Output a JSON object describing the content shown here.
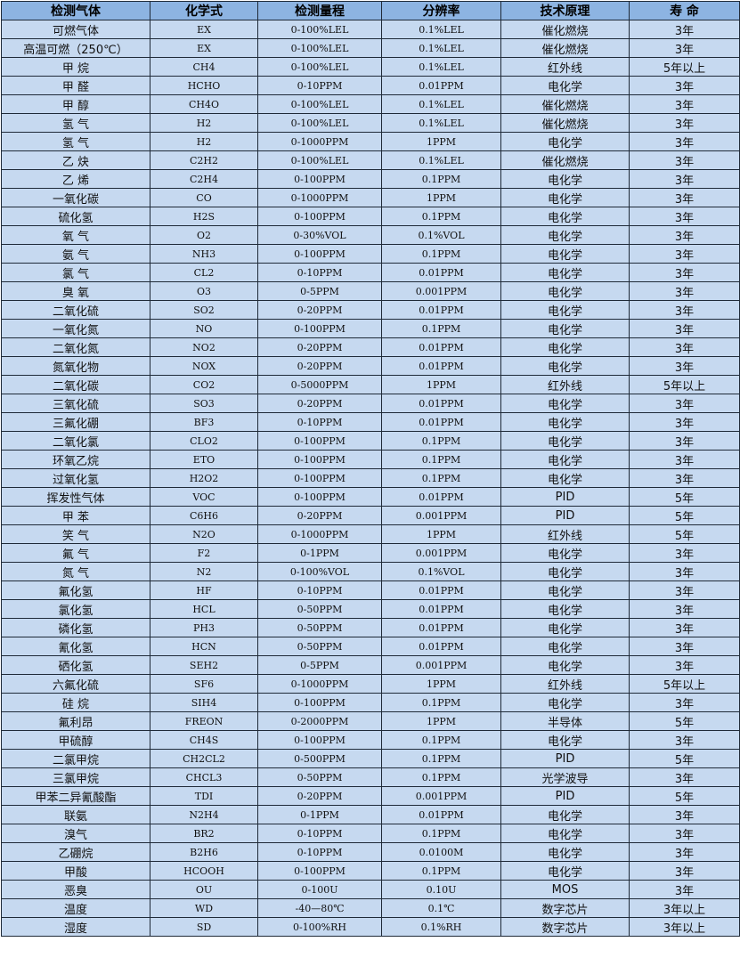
{
  "table": {
    "headers": [
      "检测气体",
      "化学式",
      "检测量程",
      "分辨率",
      "技术原理",
      "寿 命"
    ],
    "rows": [
      [
        "可燃气体",
        "EX",
        "0-100%LEL",
        "0.1%LEL",
        "催化燃烧",
        "3年"
      ],
      [
        "高温可燃（250℃）",
        "EX",
        "0-100%LEL",
        "0.1%LEL",
        "催化燃烧",
        "3年"
      ],
      [
        "甲 烷",
        "CH4",
        "0-100%LEL",
        "0.1%LEL",
        "红外线",
        "5年以上"
      ],
      [
        "甲 醛",
        "HCHO",
        "0-10PPM",
        "0.01PPM",
        "电化学",
        "3年"
      ],
      [
        "甲 醇",
        "CH4O",
        "0-100%LEL",
        "0.1%LEL",
        "催化燃烧",
        "3年"
      ],
      [
        "氢 气",
        "H2",
        "0-100%LEL",
        "0.1%LEL",
        "催化燃烧",
        "3年"
      ],
      [
        "氢 气",
        "H2",
        "0-1000PPM",
        "1PPM",
        "电化学",
        "3年"
      ],
      [
        "乙 炔",
        "C2H2",
        "0-100%LEL",
        "0.1%LEL",
        "催化燃烧",
        "3年"
      ],
      [
        "乙 烯",
        "C2H4",
        "0-100PPM",
        "0.1PPM",
        "电化学",
        "3年"
      ],
      [
        "一氧化碳",
        "CO",
        "0-1000PPM",
        "1PPM",
        "电化学",
        "3年"
      ],
      [
        "硫化氢",
        "H2S",
        "0-100PPM",
        "0.1PPM",
        "电化学",
        "3年"
      ],
      [
        "氧 气",
        "O2",
        "0-30%VOL",
        "0.1%VOL",
        "电化学",
        "3年"
      ],
      [
        "氨 气",
        "NH3",
        "0-100PPM",
        "0.1PPM",
        "电化学",
        "3年"
      ],
      [
        "氯 气",
        "CL2",
        "0-10PPM",
        "0.01PPM",
        "电化学",
        "3年"
      ],
      [
        "臭 氧",
        "O3",
        "0-5PPM",
        "0.001PPM",
        "电化学",
        "3年"
      ],
      [
        "二氧化硫",
        "SO2",
        "0-20PPM",
        "0.01PPM",
        "电化学",
        "3年"
      ],
      [
        "一氧化氮",
        "NO",
        "0-100PPM",
        "0.1PPM",
        "电化学",
        "3年"
      ],
      [
        "二氧化氮",
        "NO2",
        "0-20PPM",
        "0.01PPM",
        "电化学",
        "3年"
      ],
      [
        "氮氧化物",
        "NOX",
        "0-20PPM",
        "0.01PPM",
        "电化学",
        "3年"
      ],
      [
        "二氧化碳",
        "CO2",
        "0-5000PPM",
        "1PPM",
        "红外线",
        "5年以上"
      ],
      [
        "三氧化硫",
        "SO3",
        "0-20PPM",
        "0.01PPM",
        "电化学",
        "3年"
      ],
      [
        "三氟化硼",
        "BF3",
        "0-10PPM",
        "0.01PPM",
        "电化学",
        "3年"
      ],
      [
        "二氧化氯",
        "CLO2",
        "0-100PPM",
        "0.1PPM",
        "电化学",
        "3年"
      ],
      [
        "环氧乙烷",
        "ETO",
        "0-100PPM",
        "0.1PPM",
        "电化学",
        "3年"
      ],
      [
        "过氧化氢",
        "H2O2",
        "0-100PPM",
        "0.1PPM",
        "电化学",
        "3年"
      ],
      [
        "挥发性气体",
        "VOC",
        "0-100PPM",
        "0.01PPM",
        "PID",
        "5年"
      ],
      [
        "甲 苯",
        "C6H6",
        "0-20PPM",
        "0.001PPM",
        "PID",
        "5年"
      ],
      [
        "笑 气",
        "N2O",
        "0-1000PPM",
        "1PPM",
        "红外线",
        "5年"
      ],
      [
        "氟 气",
        "F2",
        "0-1PPM",
        "0.001PPM",
        "电化学",
        "3年"
      ],
      [
        "氮 气",
        "N2",
        "0-100%VOL",
        "0.1%VOL",
        "电化学",
        "3年"
      ],
      [
        "氟化氢",
        "HF",
        "0-10PPM",
        "0.01PPM",
        "电化学",
        "3年"
      ],
      [
        "氯化氢",
        "HCL",
        "0-50PPM",
        "0.01PPM",
        "电化学",
        "3年"
      ],
      [
        "磷化氢",
        "PH3",
        "0-50PPM",
        "0.01PPM",
        "电化学",
        "3年"
      ],
      [
        "氰化氢",
        "HCN",
        "0-50PPM",
        "0.01PPM",
        "电化学",
        "3年"
      ],
      [
        "硒化氢",
        "SEH2",
        "0-5PPM",
        "0.001PPM",
        "电化学",
        "3年"
      ],
      [
        "六氟化硫",
        "SF6",
        "0-1000PPM",
        "1PPM",
        "红外线",
        "5年以上"
      ],
      [
        "硅 烷",
        "SIH4",
        "0-100PPM",
        "0.1PPM",
        "电化学",
        "3年"
      ],
      [
        "氟利昂",
        "FREON",
        "0-2000PPM",
        "1PPM",
        "半导体",
        "5年"
      ],
      [
        "甲硫醇",
        "CH4S",
        "0-100PPM",
        "0.1PPM",
        "电化学",
        "3年"
      ],
      [
        "二氯甲烷",
        "CH2CL2",
        "0-500PPM",
        "0.1PPM",
        "PID",
        "5年"
      ],
      [
        "三氯甲烷",
        "CHCL3",
        "0-50PPM",
        "0.1PPM",
        "光学波导",
        "3年"
      ],
      [
        "甲苯二异氰酸酯",
        "TDI",
        "0-20PPM",
        "0.001PPM",
        "PID",
        "5年"
      ],
      [
        "联氨",
        "N2H4",
        "0-1PPM",
        "0.01PPM",
        "电化学",
        "3年"
      ],
      [
        "溴气",
        "BR2",
        "0-10PPM",
        "0.1PPM",
        "电化学",
        "3年"
      ],
      [
        "乙硼烷",
        "B2H6",
        "0-10PPM",
        "0.0100M",
        "电化学",
        "3年"
      ],
      [
        "甲酸",
        "HCOOH",
        "0-100PPM",
        "0.1PPM",
        "电化学",
        "3年"
      ],
      [
        "恶臭",
        "OU",
        "0-100U",
        "0.10U",
        "MOS",
        "3年"
      ],
      [
        "温度",
        "WD",
        "-40—80℃",
        "0.1℃",
        "数字芯片",
        "3年以上"
      ],
      [
        "湿度",
        "SD",
        "0-100%RH",
        "0.1%RH",
        "数字芯片",
        "3年以上"
      ]
    ]
  },
  "colors": {
    "header_bg": "#8db4e2",
    "row_bg": "#c6d9f0",
    "border": "#1f2a38"
  }
}
